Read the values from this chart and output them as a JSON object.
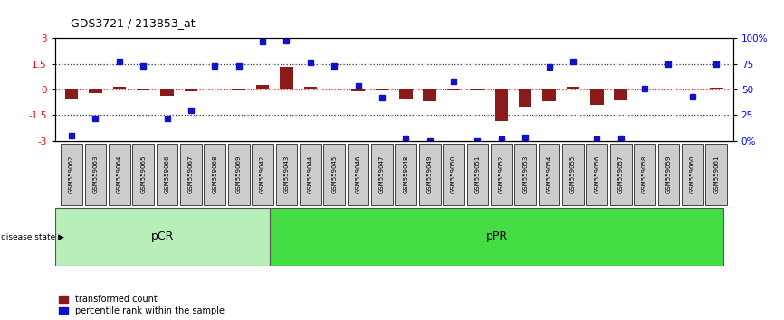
{
  "title": "GDS3721 / 213853_at",
  "samples": [
    "GSM559062",
    "GSM559063",
    "GSM559064",
    "GSM559065",
    "GSM559066",
    "GSM559067",
    "GSM559068",
    "GSM559069",
    "GSM559042",
    "GSM559043",
    "GSM559044",
    "GSM559045",
    "GSM559046",
    "GSM559047",
    "GSM559048",
    "GSM559049",
    "GSM559050",
    "GSM559051",
    "GSM559052",
    "GSM559053",
    "GSM559054",
    "GSM559055",
    "GSM559056",
    "GSM559057",
    "GSM559058",
    "GSM559059",
    "GSM559060",
    "GSM559061"
  ],
  "bar_values": [
    -0.55,
    -0.2,
    0.15,
    -0.05,
    -0.35,
    -0.08,
    0.05,
    -0.05,
    0.28,
    1.35,
    0.15,
    0.05,
    -0.1,
    -0.05,
    -0.55,
    -0.7,
    -0.05,
    -0.05,
    -1.85,
    -1.0,
    -0.7,
    0.15,
    -0.9,
    -0.65,
    0.08,
    0.05,
    0.05,
    0.1
  ],
  "percentile_values": [
    -2.7,
    -1.7,
    1.65,
    1.4,
    -1.7,
    -1.2,
    1.4,
    1.4,
    2.8,
    2.85,
    1.6,
    1.4,
    0.2,
    -0.45,
    -2.85,
    -3.0,
    0.5,
    -3.0,
    -2.9,
    -2.8,
    1.35,
    1.65,
    -2.9,
    -2.85,
    0.05,
    1.5,
    -0.4,
    1.5
  ],
  "pcr_count": 9,
  "ppr_count": 19,
  "ylim": [
    -3,
    3
  ],
  "yticks_left": [
    -3,
    -1.5,
    0,
    1.5,
    3
  ],
  "yticks_left_labels": [
    "-3",
    "-1.5",
    "0",
    "1.5",
    "3"
  ],
  "yticks_right_labels": [
    "0%",
    "25",
    "50",
    "75",
    "100%"
  ],
  "bar_color": "#8B1A1A",
  "dot_color": "#1111CC",
  "pcr_color": "#B8EEB8",
  "ppr_color": "#44DD44",
  "bg_color": "#FFFFFF",
  "zero_line_color": "#EE2222",
  "dotted_line_color": "#333333",
  "tick_bg_color": "#CCCCCC",
  "plot_bg_color": "#FFFFFF"
}
